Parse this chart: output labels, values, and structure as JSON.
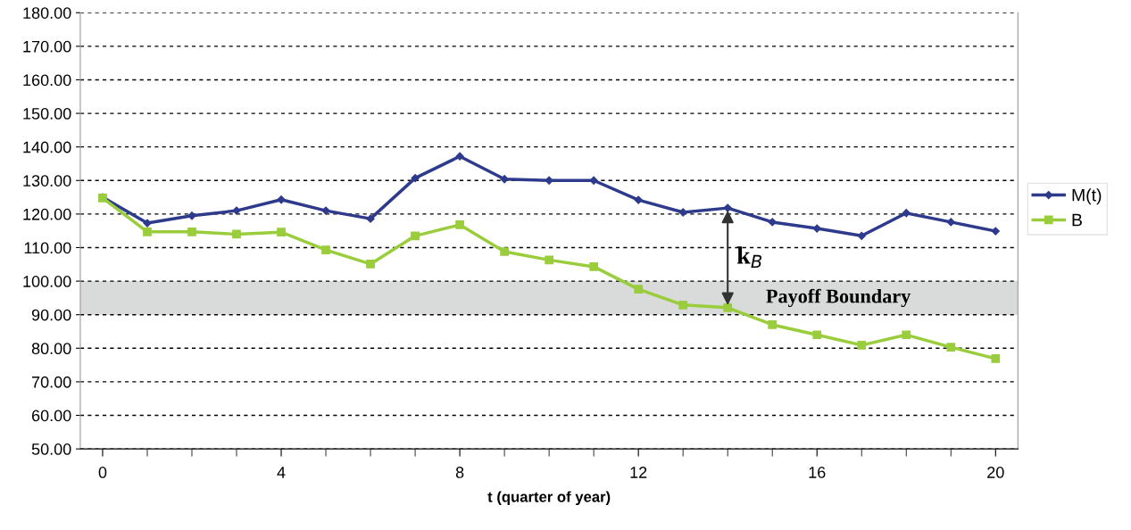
{
  "chart_data": {
    "type": "line",
    "x": [
      0,
      1,
      2,
      3,
      4,
      5,
      6,
      7,
      8,
      9,
      10,
      11,
      12,
      13,
      14,
      15,
      16,
      17,
      18,
      19,
      20
    ],
    "xlim": [
      -0.5,
      20.5
    ],
    "xticks": [
      0,
      4,
      8,
      12,
      16,
      20
    ],
    "series": [
      {
        "name": "M(t)",
        "color": "#2e3a8c",
        "marker": "diamond",
        "values": [
          125,
          117.3,
          119.5,
          121,
          124.3,
          121,
          118.6,
          130.7,
          137.2,
          130.4,
          130,
          130,
          124.2,
          120.5,
          121.8,
          117.6,
          115.7,
          113.5,
          120.3,
          117.6,
          114.9
        ]
      },
      {
        "name": "B",
        "color": "#9acd3c",
        "marker": "square",
        "values": [
          124.8,
          114.7,
          114.7,
          114,
          114.6,
          109.3,
          105.1,
          113.5,
          116.8,
          108.8,
          106.3,
          104.3,
          97.6,
          92.9,
          92.1,
          87,
          84,
          80.9,
          84,
          80.3,
          76.9
        ]
      }
    ],
    "xlabel": "t (quarter of year)",
    "ylim": [
      50,
      180
    ],
    "yticks": [
      {
        "value": 50,
        "label": "50.00"
      },
      {
        "value": 60,
        "label": "60.00"
      },
      {
        "value": 70,
        "label": "70.00"
      },
      {
        "value": 80,
        "label": "80.00"
      },
      {
        "value": 90,
        "label": "90.00"
      },
      {
        "value": 100,
        "label": "100.00"
      },
      {
        "value": 110,
        "label": "110.00"
      },
      {
        "value": 120,
        "label": "120.00"
      },
      {
        "value": 130,
        "label": "130.00"
      },
      {
        "value": 140,
        "label": "140.00"
      },
      {
        "value": 150,
        "label": "150.00"
      },
      {
        "value": 160,
        "label": "160.00"
      },
      {
        "value": 170,
        "label": "170.00"
      },
      {
        "value": 180,
        "label": "180.00"
      }
    ],
    "bands": [
      {
        "axis": "y",
        "from": 90,
        "to": 100,
        "label": "Payoff Boundary",
        "color": "#d9dbda"
      }
    ],
    "annotations": [
      {
        "text": "k$_{B}$",
        "x": 14,
        "y": 121.8
      }
    ],
    "grid": "y",
    "line_style": "solid",
    "legend": "right"
  }
}
